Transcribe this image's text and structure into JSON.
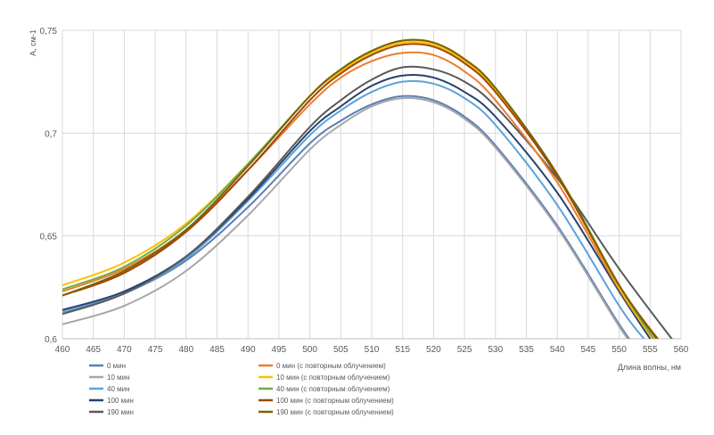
{
  "chart_data": {
    "type": "line",
    "title": "",
    "xlabel": "Длина волны, нм",
    "ylabel": "А, см-1",
    "xlim": [
      460,
      560
    ],
    "ylim": [
      0.6,
      0.75
    ],
    "x_ticks": [
      "460",
      "465",
      "470",
      "475",
      "480",
      "485",
      "490",
      "495",
      "500",
      "505",
      "510",
      "515",
      "520",
      "525",
      "530",
      "535",
      "540",
      "545",
      "550",
      "555",
      "560"
    ],
    "y_ticks": [
      "0,6",
      "0,65",
      "0,7",
      "0,75"
    ],
    "grid": "vertical and horizontal",
    "legend_position": "bottom",
    "series": [
      {
        "name": "0 мин",
        "color": "#5b7fb5",
        "x": [
          460,
          470,
          480,
          490,
          500,
          505,
          510,
          515,
          520,
          525,
          530,
          540,
          550,
          553
        ],
        "y": [
          0.613,
          0.622,
          0.638,
          0.664,
          0.695,
          0.706,
          0.714,
          0.718,
          0.716,
          0.708,
          0.694,
          0.655,
          0.607,
          0.595
        ]
      },
      {
        "name": "10 мин",
        "color": "#a6a6a6",
        "x": [
          460,
          470,
          480,
          490,
          500,
          505,
          510,
          515,
          520,
          525,
          530,
          540,
          550,
          553
        ],
        "y": [
          0.607,
          0.616,
          0.633,
          0.66,
          0.692,
          0.704,
          0.713,
          0.717,
          0.715,
          0.707,
          0.693,
          0.654,
          0.606,
          0.594
        ]
      },
      {
        "name": "40 мин",
        "color": "#5ba3d9",
        "x": [
          460,
          470,
          480,
          490,
          500,
          505,
          510,
          515,
          520,
          525,
          530,
          540,
          550,
          554
        ],
        "y": [
          0.613,
          0.622,
          0.639,
          0.667,
          0.699,
          0.711,
          0.72,
          0.725,
          0.724,
          0.717,
          0.704,
          0.665,
          0.616,
          0.6
        ]
      },
      {
        "name": "100 мин",
        "color": "#26406f",
        "x": [
          460,
          470,
          480,
          490,
          500,
          505,
          510,
          515,
          520,
          525,
          530,
          540,
          550,
          555
        ],
        "y": [
          0.614,
          0.623,
          0.64,
          0.668,
          0.701,
          0.713,
          0.723,
          0.728,
          0.727,
          0.72,
          0.708,
          0.671,
          0.623,
          0.6
        ]
      },
      {
        "name": "190 мин",
        "color": "#595959",
        "x": [
          460,
          470,
          480,
          490,
          500,
          505,
          510,
          515,
          520,
          525,
          530,
          540,
          550,
          559
        ],
        "y": [
          0.612,
          0.622,
          0.64,
          0.669,
          0.703,
          0.716,
          0.726,
          0.732,
          0.731,
          0.725,
          0.713,
          0.678,
          0.634,
          0.598
        ]
      },
      {
        "name": "0 мин (с повторным облучением)",
        "color": "#ed7d31",
        "x": [
          460,
          470,
          480,
          490,
          500,
          505,
          510,
          515,
          520,
          525,
          530,
          540,
          550,
          556
        ],
        "y": [
          0.623,
          0.634,
          0.653,
          0.682,
          0.714,
          0.727,
          0.735,
          0.739,
          0.738,
          0.73,
          0.716,
          0.676,
          0.624,
          0.598
        ]
      },
      {
        "name": "10 мин (с повторным облучением)",
        "color": "#ffc000",
        "x": [
          460,
          470,
          480,
          490,
          500,
          505,
          510,
          515,
          520,
          525,
          530,
          540,
          550,
          556
        ],
        "y": [
          0.626,
          0.637,
          0.656,
          0.685,
          0.718,
          0.73,
          0.739,
          0.744,
          0.743,
          0.735,
          0.721,
          0.679,
          0.625,
          0.597
        ]
      },
      {
        "name": "40 мин (с повторным облучением)",
        "color": "#70ad47",
        "x": [
          460,
          470,
          480,
          490,
          500,
          505,
          510,
          515,
          520,
          525,
          530,
          540,
          550,
          556
        ],
        "y": [
          0.624,
          0.635,
          0.655,
          0.685,
          0.718,
          0.731,
          0.74,
          0.745,
          0.744,
          0.736,
          0.722,
          0.68,
          0.626,
          0.598
        ]
      },
      {
        "name": "100 мин (с повторным облучением)",
        "color": "#9e480e",
        "x": [
          460,
          470,
          480,
          490,
          500,
          505,
          510,
          515,
          520,
          525,
          530,
          540,
          550,
          557
        ],
        "y": [
          0.621,
          0.632,
          0.652,
          0.682,
          0.716,
          0.729,
          0.738,
          0.743,
          0.742,
          0.734,
          0.72,
          0.679,
          0.626,
          0.596
        ]
      },
      {
        "name": "190 мин (с повторным облучением)",
        "color": "#7f6000",
        "x": [
          460,
          470,
          480,
          490,
          500,
          505,
          510,
          515,
          520,
          525,
          530,
          540,
          550,
          557
        ],
        "y": [
          0.621,
          0.633,
          0.653,
          0.684,
          0.718,
          0.731,
          0.74,
          0.745,
          0.744,
          0.736,
          0.722,
          0.68,
          0.626,
          0.597
        ]
      }
    ]
  }
}
